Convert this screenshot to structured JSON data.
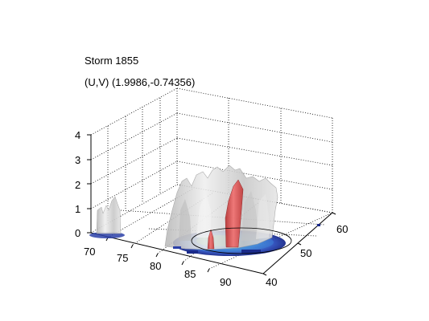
{
  "title": "Storm 1855",
  "subtitle": "(U,V) (1.9986,-0.74356)",
  "axes": {
    "z_ticks": [
      "0",
      "1",
      "2",
      "3",
      "4"
    ],
    "y_ticks": [
      "70",
      "75",
      "80",
      "85",
      "90"
    ],
    "x_ticks": [
      "40",
      "50",
      "60"
    ]
  },
  "colors": {
    "isosurface": "#d9d9d9",
    "core": "#e04b4b",
    "base_dark": "#1a2a8a",
    "base_mid": "#3a7ae0",
    "base_light": "#7fd08a"
  }
}
